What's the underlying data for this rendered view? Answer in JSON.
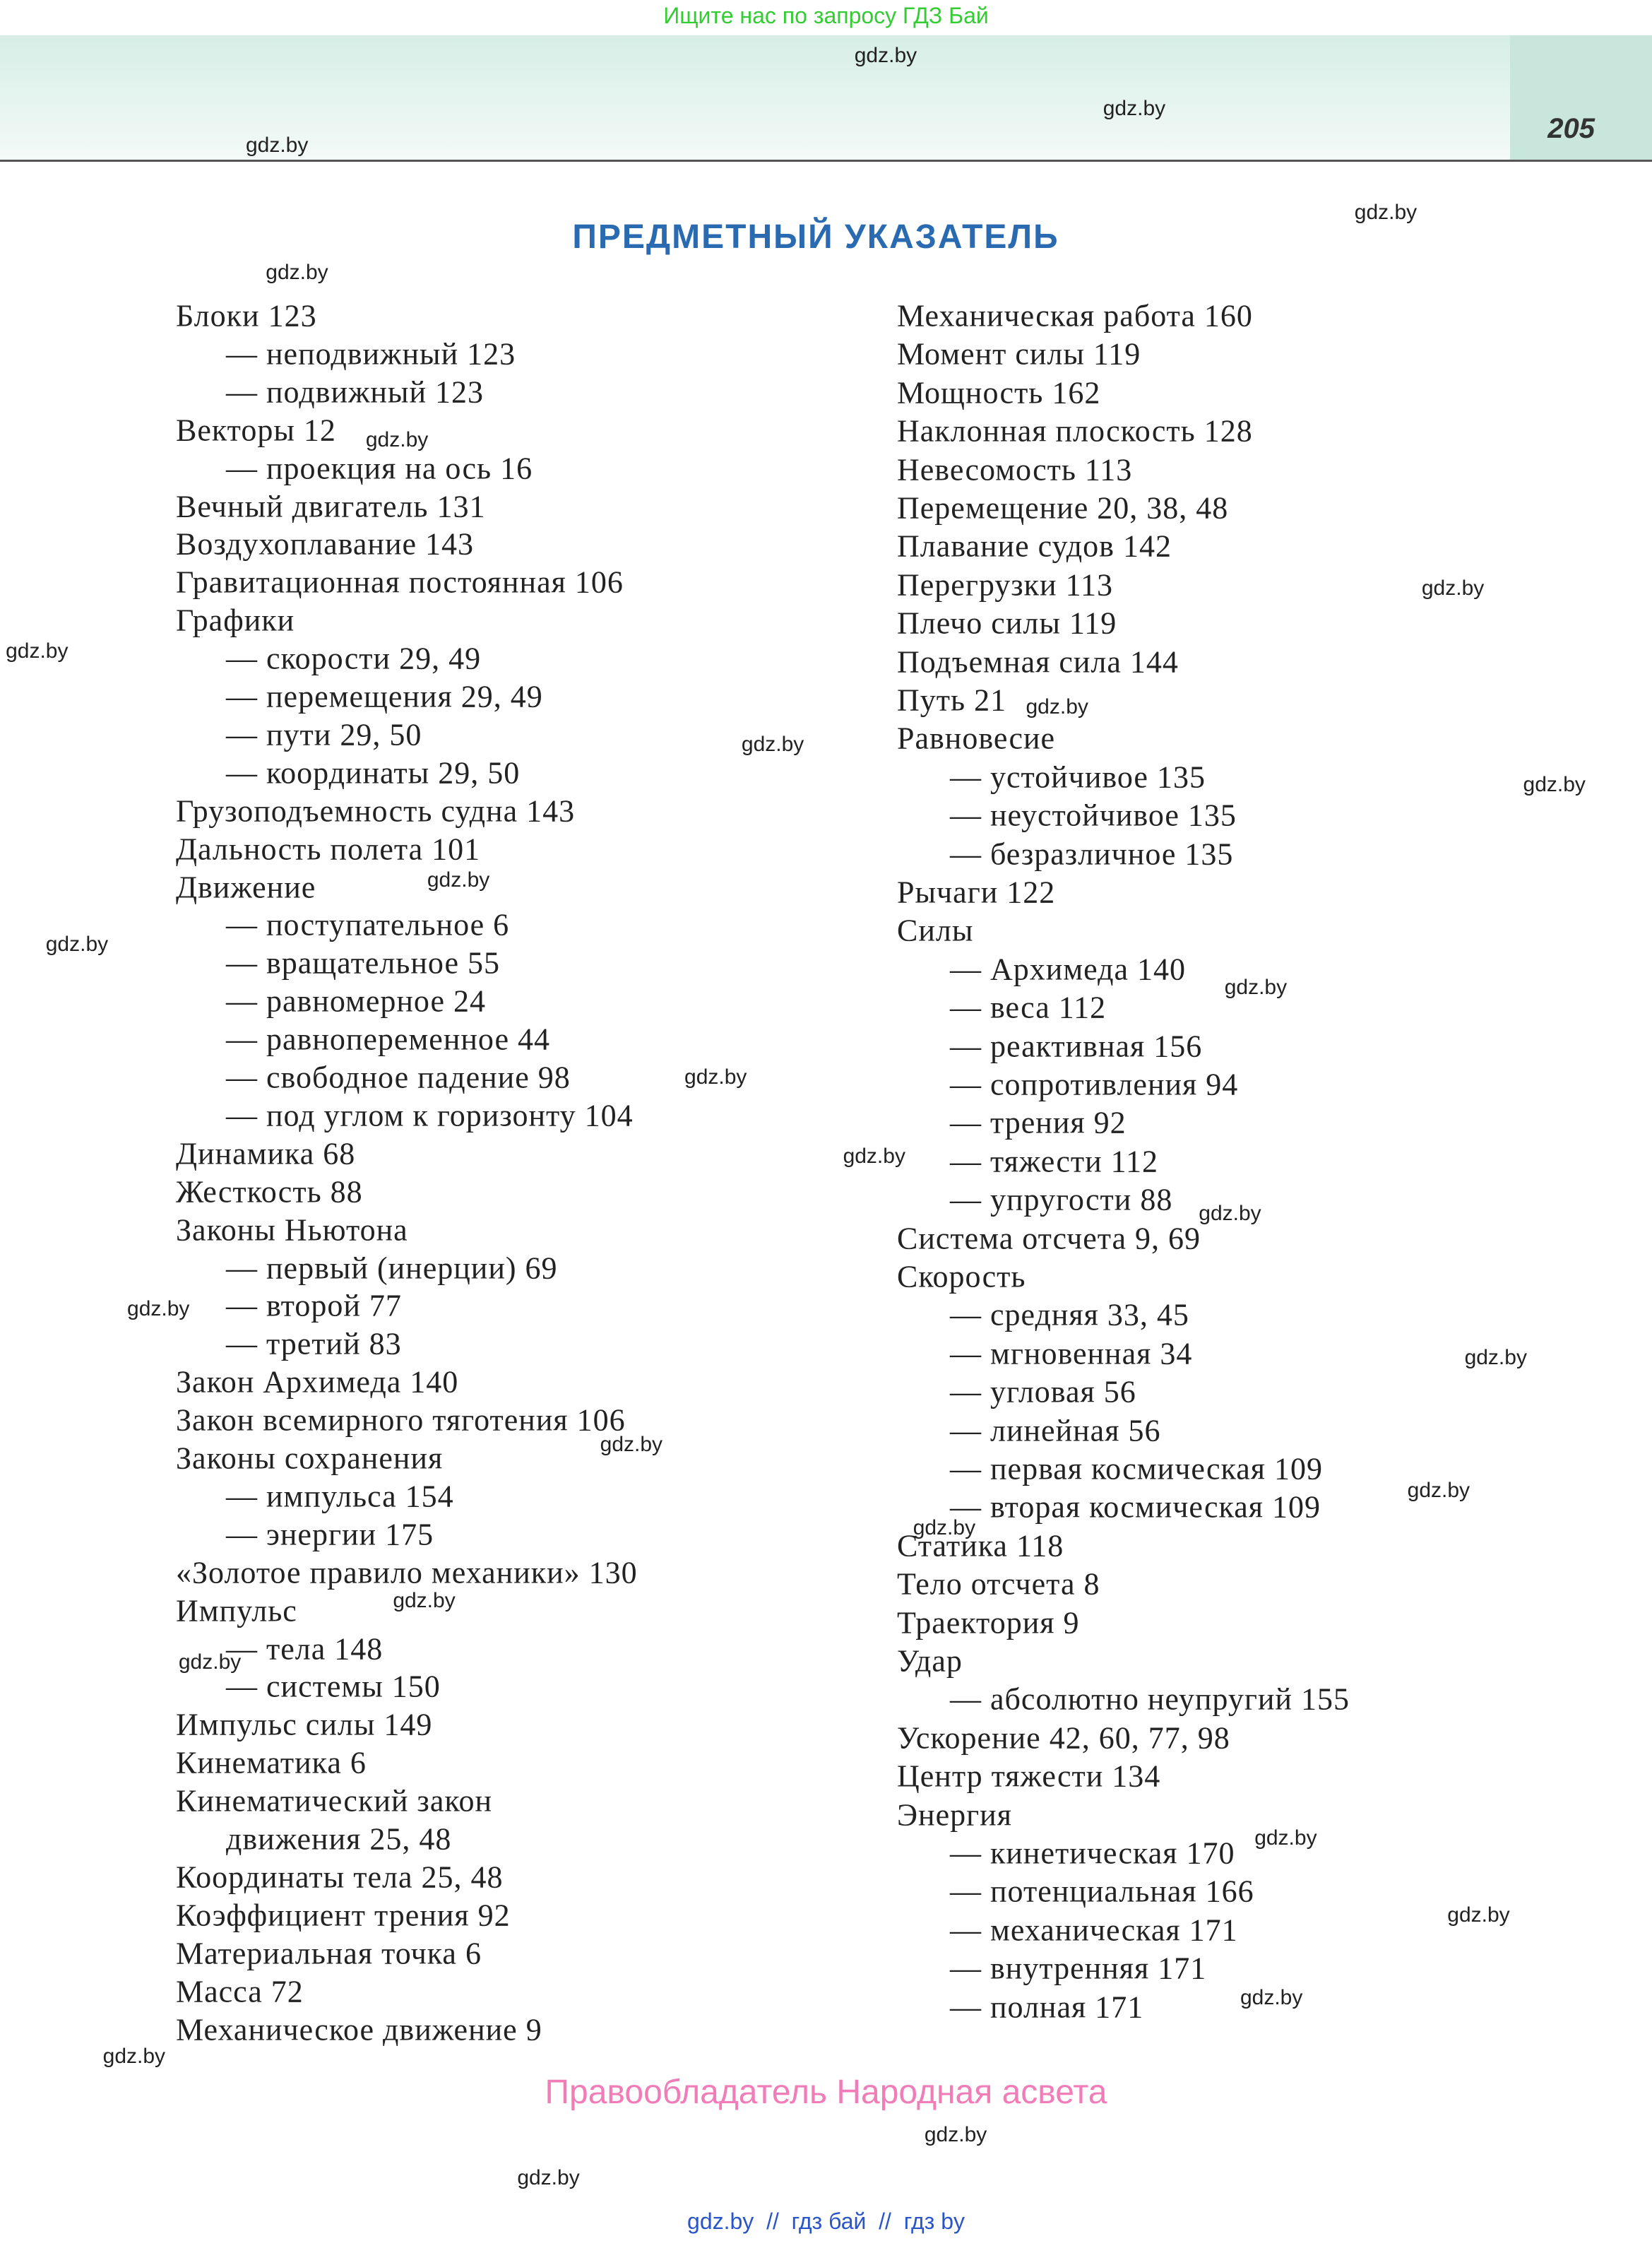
{
  "header": {
    "search": "Ищите нас по запросу ГДЗ Бай",
    "page_number": "205"
  },
  "title": "ПРЕДМЕТНЫЙ УКАЗАТЕЛЬ",
  "index": {
    "left": [
      {
        "text": "Блоки 123",
        "sub": [
          "— неподвижный 123",
          "— подвижный 123"
        ]
      },
      {
        "text": "Векторы 12",
        "sub": [
          "— проекция на ось 16"
        ]
      },
      {
        "text": "Вечный двигатель 131"
      },
      {
        "text": "Воздухоплавание 143"
      },
      {
        "text": "Гравитационная постоянная 106"
      },
      {
        "text": "Графики",
        "sub": [
          "— скорости 29, 49",
          "— перемещения 29, 49",
          "— пути 29, 50",
          "— координаты 29, 50"
        ]
      },
      {
        "text": "Грузоподъемность судна 143"
      },
      {
        "text": "Дальность полета 101"
      },
      {
        "text": "Движение",
        "sub": [
          "— поступательное 6",
          "— вращательное 55",
          "— равномерное 24",
          "— равнопеременное 44",
          "— свободное падение 98",
          "— под углом к горизонту 104"
        ]
      },
      {
        "text": "Динамика 68"
      },
      {
        "text": "Жесткость 88"
      },
      {
        "text": "Законы Ньютона",
        "sub": [
          "— первый (инерции) 69",
          "— второй 77",
          "— третий 83"
        ]
      },
      {
        "text": "Закон Архимеда 140"
      },
      {
        "text": "Закон всемирного тяготения 106"
      },
      {
        "text": "Законы сохранения",
        "sub": [
          "— импульса 154",
          "— энергии 175"
        ]
      },
      {
        "text": "«Золотое правило механики» 130"
      },
      {
        "text": "Импульс",
        "sub": [
          "— тела 148",
          "— системы 150"
        ]
      },
      {
        "text": "Импульс силы 149"
      },
      {
        "text": "Кинематика 6"
      },
      {
        "text": "Кинематический закон",
        "sub": [
          "движения 25, 48"
        ]
      },
      {
        "text": "Координаты тела 25, 48"
      },
      {
        "text": "Коэффициент трения 92"
      },
      {
        "text": "Материальная точка 6"
      },
      {
        "text": "Масса 72"
      },
      {
        "text": "Механическое движение 9"
      }
    ],
    "right": [
      {
        "text": "Механическая работа 160"
      },
      {
        "text": "Момент силы 119"
      },
      {
        "text": "Мощность 162"
      },
      {
        "text": "Наклонная плоскость 128"
      },
      {
        "text": "Невесомость 113"
      },
      {
        "text": "Перемещение 20, 38, 48"
      },
      {
        "text": "Плавание судов 142"
      },
      {
        "text": "Перегрузки 113"
      },
      {
        "text": "Плечо силы 119"
      },
      {
        "text": "Подъемная сила 144"
      },
      {
        "text": "Путь 21"
      },
      {
        "text": "Равновесие",
        "sub": [
          "— устойчивое 135",
          "— неустойчивое 135",
          "— безразличное 135"
        ]
      },
      {
        "text": "Рычаги 122"
      },
      {
        "text": "Силы",
        "sub": [
          "— Архимеда 140",
          "— веса 112",
          "— реактивная 156",
          "— сопротивления 94",
          "— трения 92",
          "— тяжести 112",
          "— упругости 88"
        ]
      },
      {
        "text": "Система отсчета 9, 69"
      },
      {
        "text": "Скорость",
        "sub": [
          "— средняя 33, 45",
          "— мгновенная 34",
          "— угловая 56",
          "— линейная 56",
          "— первая космическая 109",
          "— вторая космическая 109"
        ]
      },
      {
        "text": "Статика 118"
      },
      {
        "text": "Тело отсчета 8"
      },
      {
        "text": "Траектория 9"
      },
      {
        "text": "Удар",
        "sub": [
          "— абсолютно неупругий 155"
        ]
      },
      {
        "text": "Ускорение 42, 60, 77, 98"
      },
      {
        "text": "Центр тяжести 134"
      },
      {
        "text": "Энергия",
        "sub": [
          "— кинетическая 170",
          "— потенциальная 166",
          "— механическая 171",
          "— внутренняя 171",
          "— полная 171"
        ]
      }
    ]
  },
  "watermarks": [
    "gdz.by",
    "gdz.by",
    "gdz.by",
    "gdz.by",
    "gdz.by",
    "gdz.by",
    "gdz.by",
    "gdz.by",
    "gdz.by",
    "gdz.by",
    "gdz.by",
    "gdz.by",
    "gdz.by",
    "gdz.by",
    "gdz.by",
    "gdz.by",
    "gdz.by",
    "gdz.by",
    "gdz.by",
    "gdz.by",
    "gdz.by",
    "gdz.by",
    "gdz.by",
    "gdz.by",
    "gdz.by",
    "gdz.by",
    "gdz.by",
    "gdz.by",
    "gdz.by",
    "gdz.by"
  ],
  "footer": {
    "copyright": "Правообладатель Народная асвета",
    "links": "gdz.by  //  гдз бай  //  гдз by"
  }
}
